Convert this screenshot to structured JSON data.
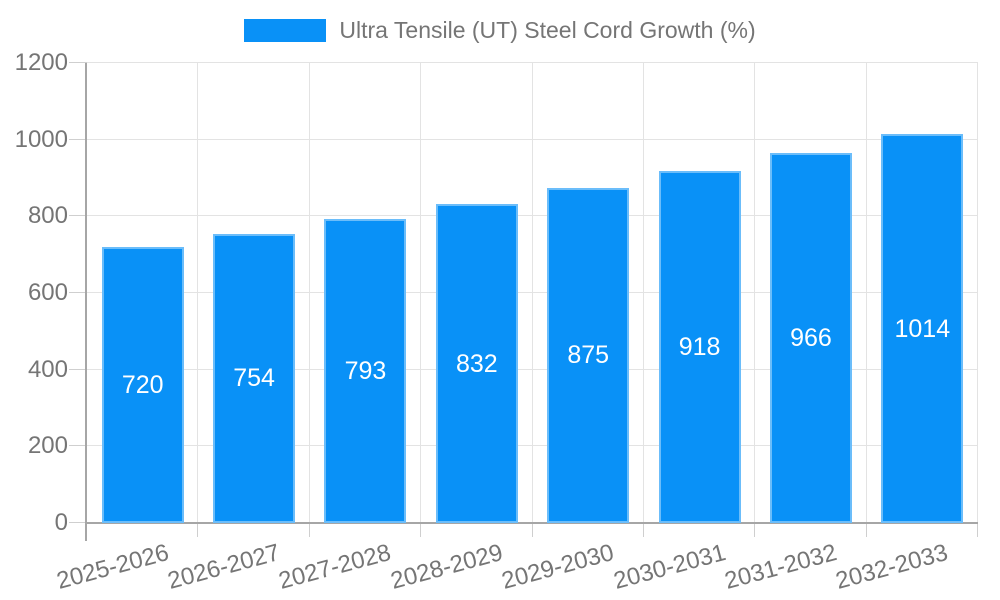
{
  "legend": {
    "label": "Ultra Tensile (UT) Steel Cord Growth (%)"
  },
  "chart_data": {
    "type": "bar",
    "title": "Ultra Tensile (UT) Steel Cord Growth (%)",
    "categories": [
      "2025-2026",
      "2026-2027",
      "2027-2028",
      "2028-2029",
      "2029-2030",
      "2030-2031",
      "2031-2032",
      "2032-2033"
    ],
    "values": [
      720,
      754,
      793,
      832,
      875,
      918,
      966,
      1014
    ],
    "xlabel": "",
    "ylabel": "",
    "ylim": [
      0,
      1200
    ],
    "yticks": [
      0,
      200,
      400,
      600,
      800,
      1000,
      1200
    ],
    "grid": true,
    "legend_position": "top-center",
    "value_labels": "inside-center",
    "colors": {
      "bar_fill": "#0991f7",
      "bar_edge": "#7dc1fa",
      "value_label": "#ffffff",
      "axis_text": "#757575",
      "gridline": "#e3e3e3",
      "axis_line": "#a6a6a6",
      "tick": "#cfcfcf"
    }
  }
}
